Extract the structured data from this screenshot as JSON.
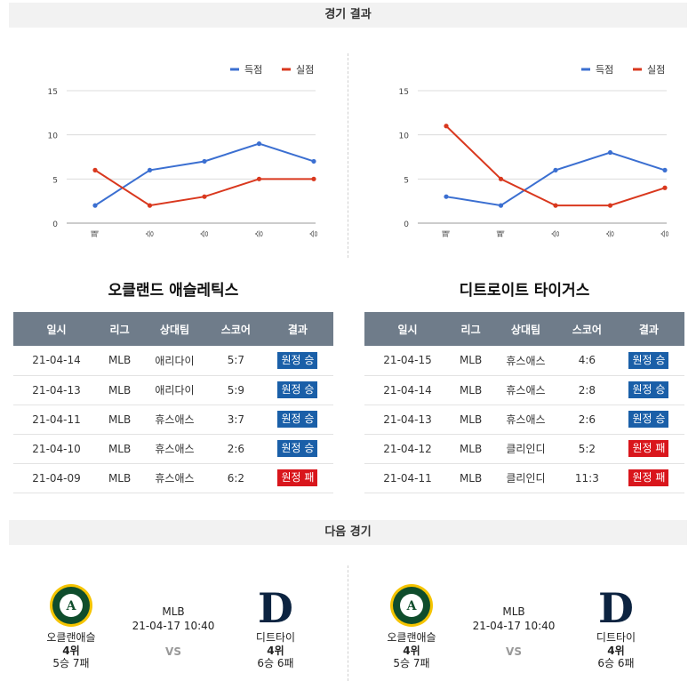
{
  "section_results": "경기 결과",
  "section_next": "다음 경기",
  "legend": {
    "scored": "득점",
    "conceded": "실점"
  },
  "colors": {
    "scored": "#3b6fd1",
    "conceded": "#d9381e",
    "win_badge": "#1a5fa8",
    "loss_badge": "#d9161c",
    "header_bg": "#6f7c8a"
  },
  "table_headers": {
    "date": "일시",
    "league": "리그",
    "opponent": "상대팀",
    "score": "스코어",
    "result": "결과"
  },
  "teams": [
    {
      "name": "오클랜드 애슬레틱스",
      "rows": [
        {
          "date": "21-04-14",
          "league": "MLB",
          "opponent": "애리다이",
          "score": "5:7",
          "result": "원정 승",
          "win": true
        },
        {
          "date": "21-04-13",
          "league": "MLB",
          "opponent": "애리다이",
          "score": "5:9",
          "result": "원정 승",
          "win": true
        },
        {
          "date": "21-04-11",
          "league": "MLB",
          "opponent": "휴스애스",
          "score": "3:7",
          "result": "원정 승",
          "win": true
        },
        {
          "date": "21-04-10",
          "league": "MLB",
          "opponent": "휴스애스",
          "score": "2:6",
          "result": "원정 승",
          "win": true
        },
        {
          "date": "21-04-09",
          "league": "MLB",
          "opponent": "휴스애스",
          "score": "6:2",
          "result": "원정 패",
          "win": false
        }
      ]
    },
    {
      "name": "디트로이트 타이거스",
      "rows": [
        {
          "date": "21-04-15",
          "league": "MLB",
          "opponent": "휴스애스",
          "score": "4:6",
          "result": "원정 승",
          "win": true
        },
        {
          "date": "21-04-14",
          "league": "MLB",
          "opponent": "휴스애스",
          "score": "2:8",
          "result": "원정 승",
          "win": true
        },
        {
          "date": "21-04-13",
          "league": "MLB",
          "opponent": "휴스애스",
          "score": "2:6",
          "result": "원정 승",
          "win": true
        },
        {
          "date": "21-04-12",
          "league": "MLB",
          "opponent": "클리인디",
          "score": "5:2",
          "result": "원정 패",
          "win": false
        },
        {
          "date": "21-04-11",
          "league": "MLB",
          "opponent": "클리인디",
          "score": "11:3",
          "result": "원정 패",
          "win": false
        }
      ]
    }
  ],
  "chart_data": [
    {
      "type": "line",
      "categories": [
        "패",
        "승",
        "승",
        "승",
        "승"
      ],
      "series": [
        {
          "name": "득점",
          "values": [
            2,
            6,
            7,
            9,
            7
          ]
        },
        {
          "name": "실점",
          "values": [
            6,
            2,
            3,
            5,
            5
          ]
        }
      ],
      "yticks": [
        0,
        5,
        10,
        15
      ],
      "ylim": [
        0,
        15
      ],
      "grid": true,
      "legend_position": "top-right"
    },
    {
      "type": "line",
      "categories": [
        "패",
        "패",
        "승",
        "승",
        "승"
      ],
      "series": [
        {
          "name": "득점",
          "values": [
            3,
            2,
            6,
            8,
            6
          ]
        },
        {
          "name": "실점",
          "values": [
            11,
            5,
            2,
            2,
            4
          ]
        }
      ],
      "yticks": [
        0,
        5,
        10,
        15
      ],
      "ylim": [
        0,
        15
      ],
      "grid": true,
      "legend_position": "top-right"
    }
  ],
  "next_games": [
    {
      "league": "MLB",
      "datetime": "21-04-17 10:40",
      "vs": "VS",
      "home": {
        "name": "오클랜애슬",
        "rank": "4위",
        "record": "5승 7패",
        "logo": "oakland-athletics-logo"
      },
      "away": {
        "name": "디트타이",
        "rank": "4위",
        "record": "6승 6패",
        "logo": "detroit-tigers-logo"
      }
    },
    {
      "league": "MLB",
      "datetime": "21-04-17 10:40",
      "vs": "VS",
      "home": {
        "name": "오클랜애슬",
        "rank": "4위",
        "record": "5승 7패",
        "logo": "oakland-athletics-logo"
      },
      "away": {
        "name": "디트타이",
        "rank": "4위",
        "record": "6승 6패",
        "logo": "detroit-tigers-logo"
      }
    }
  ]
}
